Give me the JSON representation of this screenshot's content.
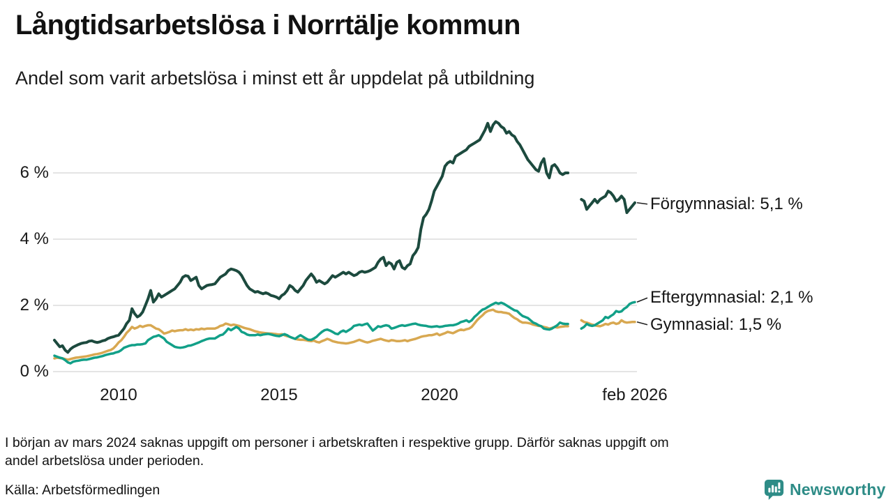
{
  "header": {
    "title": "Långtidsarbetslösa i Norrtälje kommun",
    "subtitle": "Andel som varit arbetslösa i minst ett år uppdelat på utbildning"
  },
  "footer": {
    "note_line1": "I början av mars 2024 saknas uppgift om personer i arbetskraften i respektive grupp. Därför saknas uppgift om",
    "note_line2": "andel arbetslösa under perioden.",
    "source": "Källa: Arbetsförmedlingen"
  },
  "branding": {
    "logo_text": "Newsworthy",
    "logo_color": "#2E8C87"
  },
  "chart_data": {
    "type": "line",
    "title": "Långtidsarbetslösa i Norrtälje kommun",
    "subtitle": "Andel som varit arbetslösa i minst ett år uppdelat på utbildning",
    "unit": "%",
    "x_start": "2008-01",
    "x_step_months": 1,
    "x_end": "2026-02",
    "missing_data_period": "2024-02 till 2024-05",
    "ylim": [
      0,
      8
    ],
    "grid": "horizontal",
    "legend_position": "end-of-line-labels",
    "grid_color": "#e4e4e4",
    "y_ticks": [
      {
        "label": "0 %",
        "value": 0
      },
      {
        "label": "2 %",
        "value": 2
      },
      {
        "label": "4 %",
        "value": 4
      },
      {
        "label": "6 %",
        "value": 6
      }
    ],
    "x_ticks": [
      {
        "label": "2010",
        "year": 2010.0
      },
      {
        "label": "2015",
        "year": 2015.0
      },
      {
        "label": "2020",
        "year": 2020.0
      },
      {
        "label": "feb 2026",
        "year": 2026.08
      }
    ],
    "series": [
      {
        "name": "Gymnasial",
        "end_label": "Gymnasial: 1,5 %",
        "last_value": 1.5,
        "color": "#D8A851",
        "stroke_width": 3.5,
        "values": [
          0.4,
          0.42,
          0.41,
          0.4,
          0.38,
          0.36,
          0.38,
          0.4,
          0.42,
          0.43,
          0.44,
          0.45,
          0.46,
          0.48,
          0.5,
          0.52,
          0.53,
          0.55,
          0.57,
          0.6,
          0.63,
          0.65,
          0.7,
          0.78,
          0.88,
          0.95,
          1.05,
          1.17,
          1.25,
          1.35,
          1.3,
          1.33,
          1.38,
          1.35,
          1.38,
          1.4,
          1.4,
          1.35,
          1.3,
          1.28,
          1.22,
          1.15,
          1.17,
          1.2,
          1.24,
          1.22,
          1.24,
          1.25,
          1.25,
          1.28,
          1.25,
          1.27,
          1.25,
          1.28,
          1.27,
          1.3,
          1.28,
          1.3,
          1.3,
          1.3,
          1.3,
          1.33,
          1.38,
          1.4,
          1.45,
          1.43,
          1.4,
          1.42,
          1.4,
          1.38,
          1.35,
          1.32,
          1.3,
          1.28,
          1.25,
          1.22,
          1.2,
          1.18,
          1.17,
          1.16,
          1.15,
          1.15,
          1.14,
          1.13,
          1.12,
          1.13,
          1.1,
          1.07,
          1.05,
          1.02,
          0.99,
          0.97,
          0.96,
          0.96,
          0.95,
          0.93,
          0.92,
          0.94,
          0.9,
          0.88,
          0.92,
          0.95,
          0.99,
          0.96,
          0.92,
          0.9,
          0.88,
          0.87,
          0.86,
          0.85,
          0.86,
          0.88,
          0.9,
          0.93,
          0.96,
          0.93,
          0.9,
          0.88,
          0.9,
          0.93,
          0.95,
          0.97,
          0.99,
          0.96,
          0.94,
          0.92,
          0.95,
          0.94,
          0.92,
          0.92,
          0.93,
          0.95,
          0.92,
          0.95,
          0.97,
          0.99,
          1.02,
          1.05,
          1.07,
          1.08,
          1.1,
          1.1,
          1.12,
          1.15,
          1.1,
          1.13,
          1.16,
          1.2,
          1.18,
          1.16,
          1.2,
          1.24,
          1.27,
          1.25,
          1.28,
          1.3,
          1.35,
          1.45,
          1.55,
          1.63,
          1.7,
          1.78,
          1.83,
          1.85,
          1.87,
          1.82,
          1.8,
          1.8,
          1.78,
          1.77,
          1.75,
          1.68,
          1.62,
          1.58,
          1.52,
          1.48,
          1.48,
          1.47,
          1.45,
          1.42,
          1.4,
          1.38,
          1.37,
          1.35,
          1.33,
          1.3,
          1.32,
          1.35,
          1.33,
          1.35,
          1.36,
          1.37,
          1.37,
          null,
          null,
          null,
          null,
          1.55,
          1.5,
          1.48,
          1.45,
          1.42,
          1.4,
          1.38,
          1.37,
          1.4,
          1.44,
          1.42,
          1.46,
          1.48,
          1.44,
          1.46,
          1.55,
          1.5,
          1.48,
          1.49,
          1.5,
          1.5
        ]
      },
      {
        "name": "Eftergymnasial",
        "end_label": "Eftergymnasial: 2,1 %",
        "last_value": 2.1,
        "color": "#12A088",
        "stroke_width": 3.5,
        "values": [
          0.48,
          0.45,
          0.42,
          0.4,
          0.35,
          0.28,
          0.25,
          0.3,
          0.32,
          0.33,
          0.35,
          0.36,
          0.36,
          0.38,
          0.4,
          0.42,
          0.43,
          0.45,
          0.47,
          0.5,
          0.52,
          0.54,
          0.55,
          0.58,
          0.6,
          0.65,
          0.72,
          0.75,
          0.78,
          0.8,
          0.8,
          0.82,
          0.82,
          0.83,
          0.85,
          0.95,
          1.0,
          1.05,
          1.07,
          1.1,
          1.05,
          1.0,
          0.9,
          0.85,
          0.8,
          0.75,
          0.73,
          0.72,
          0.73,
          0.75,
          0.78,
          0.79,
          0.82,
          0.85,
          0.88,
          0.92,
          0.95,
          0.98,
          1.0,
          1.0,
          1.0,
          1.05,
          1.1,
          1.12,
          1.2,
          1.3,
          1.25,
          1.3,
          1.35,
          1.3,
          1.2,
          1.17,
          1.12,
          1.1,
          1.1,
          1.1,
          1.12,
          1.1,
          1.12,
          1.13,
          1.14,
          1.12,
          1.1,
          1.08,
          1.07,
          1.1,
          1.13,
          1.1,
          1.05,
          1.02,
          0.99,
          1.05,
          1.1,
          1.05,
          1.0,
          0.96,
          0.96,
          1.0,
          1.05,
          1.13,
          1.2,
          1.25,
          1.27,
          1.24,
          1.2,
          1.15,
          1.13,
          1.2,
          1.24,
          1.2,
          1.25,
          1.3,
          1.38,
          1.4,
          1.42,
          1.4,
          1.43,
          1.45,
          1.35,
          1.24,
          1.3,
          1.37,
          1.35,
          1.38,
          1.4,
          1.38,
          1.3,
          1.32,
          1.35,
          1.38,
          1.4,
          1.38,
          1.4,
          1.42,
          1.44,
          1.45,
          1.42,
          1.4,
          1.39,
          1.38,
          1.36,
          1.35,
          1.36,
          1.37,
          1.35,
          1.36,
          1.38,
          1.39,
          1.4,
          1.4,
          1.42,
          1.45,
          1.5,
          1.52,
          1.55,
          1.5,
          1.55,
          1.65,
          1.72,
          1.8,
          1.87,
          1.9,
          1.95,
          2.0,
          2.04,
          2.08,
          2.05,
          2.08,
          2.05,
          2.0,
          1.95,
          1.9,
          1.85,
          1.83,
          1.75,
          1.68,
          1.65,
          1.62,
          1.55,
          1.48,
          1.45,
          1.4,
          1.37,
          1.3,
          1.28,
          1.27,
          1.3,
          1.35,
          1.4,
          1.48,
          1.45,
          1.44,
          1.44,
          null,
          null,
          null,
          null,
          1.3,
          1.35,
          1.44,
          1.4,
          1.38,
          1.4,
          1.45,
          1.5,
          1.55,
          1.65,
          1.62,
          1.68,
          1.73,
          1.83,
          1.8,
          1.82,
          1.9,
          1.95,
          2.04,
          2.08,
          2.1
        ]
      },
      {
        "name": "Förgymnasial",
        "end_label": "Förgymnasial: 5,1 %",
        "last_value": 5.1,
        "color": "#1C4A3E",
        "stroke_width": 4,
        "values": [
          0.95,
          0.85,
          0.75,
          0.78,
          0.65,
          0.58,
          0.68,
          0.74,
          0.78,
          0.82,
          0.85,
          0.87,
          0.88,
          0.92,
          0.93,
          0.9,
          0.88,
          0.9,
          0.93,
          0.95,
          1.0,
          1.03,
          1.05,
          1.08,
          1.1,
          1.2,
          1.3,
          1.45,
          1.55,
          1.9,
          1.75,
          1.65,
          1.7,
          1.8,
          2.0,
          2.2,
          2.45,
          2.1,
          2.2,
          2.35,
          2.25,
          2.3,
          2.35,
          2.4,
          2.45,
          2.5,
          2.6,
          2.7,
          2.85,
          2.9,
          2.88,
          2.75,
          2.8,
          2.85,
          2.6,
          2.5,
          2.55,
          2.6,
          2.62,
          2.63,
          2.65,
          2.75,
          2.85,
          2.9,
          2.95,
          3.05,
          3.1,
          3.08,
          3.05,
          3.0,
          2.9,
          2.75,
          2.6,
          2.5,
          2.45,
          2.4,
          2.42,
          2.38,
          2.35,
          2.38,
          2.35,
          2.3,
          2.28,
          2.25,
          2.2,
          2.3,
          2.35,
          2.45,
          2.6,
          2.55,
          2.45,
          2.4,
          2.5,
          2.6,
          2.75,
          2.85,
          2.95,
          2.85,
          2.7,
          2.75,
          2.7,
          2.65,
          2.7,
          2.8,
          2.9,
          2.85,
          2.9,
          2.95,
          3.0,
          2.95,
          3.0,
          2.95,
          2.9,
          2.93,
          3.0,
          3.03,
          3.0,
          3.02,
          3.05,
          3.1,
          3.15,
          3.3,
          3.4,
          3.45,
          3.2,
          3.3,
          3.25,
          3.1,
          3.3,
          3.35,
          3.15,
          3.1,
          3.2,
          3.25,
          3.5,
          3.6,
          3.75,
          4.3,
          4.65,
          4.75,
          4.9,
          5.15,
          5.45,
          5.6,
          5.75,
          5.9,
          6.2,
          6.3,
          6.35,
          6.3,
          6.5,
          6.55,
          6.6,
          6.65,
          6.7,
          6.8,
          6.85,
          6.9,
          6.95,
          7.0,
          7.15,
          7.3,
          7.5,
          7.25,
          7.45,
          7.55,
          7.5,
          7.4,
          7.35,
          7.2,
          7.25,
          7.15,
          7.1,
          6.95,
          6.85,
          6.7,
          6.55,
          6.4,
          6.3,
          6.2,
          6.1,
          6.05,
          6.3,
          6.43,
          6.0,
          5.85,
          6.2,
          6.25,
          6.15,
          6.0,
          5.95,
          6.0,
          6.0,
          null,
          null,
          null,
          null,
          5.2,
          5.15,
          4.9,
          5.0,
          5.1,
          5.2,
          5.1,
          5.2,
          5.25,
          5.3,
          5.45,
          5.4,
          5.3,
          5.15,
          5.2,
          5.3,
          5.2,
          4.8,
          4.9,
          5.0,
          5.1
        ]
      }
    ]
  }
}
